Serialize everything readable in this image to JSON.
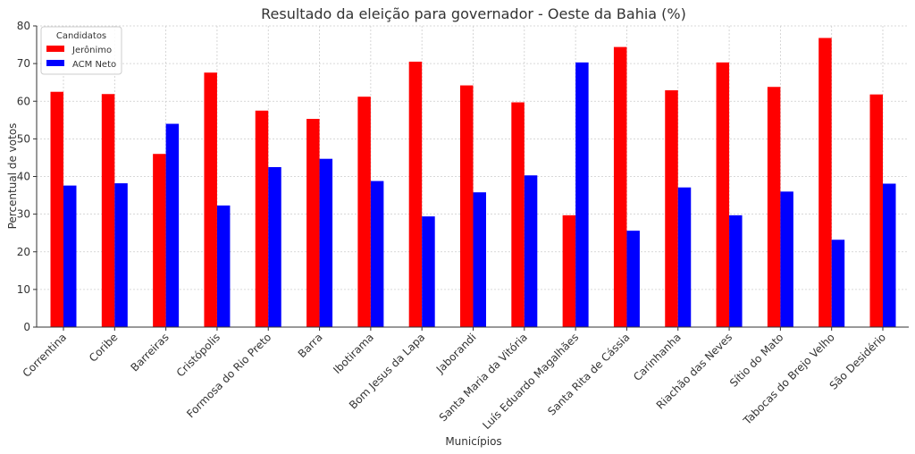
{
  "chart_data": {
    "type": "bar",
    "title": "Resultado da eleição para governador - Oeste da Bahia (%)",
    "xlabel": "Municípios",
    "ylabel": "Percentual de votos",
    "ylim": [
      0,
      80
    ],
    "yticks": [
      0,
      10,
      20,
      30,
      40,
      50,
      60,
      70,
      80
    ],
    "grid": true,
    "legend": {
      "title": "Candidatos",
      "placement": "top-left"
    },
    "categories": [
      "Correntina",
      "Coribe",
      "Barreiras",
      "Cristópolis",
      "Formosa do Rio Preto",
      "Barra",
      "Ibotirama",
      "Bom Jesus da Lapa",
      "Jaborandi",
      "Santa Maria da Vitória",
      "Luís Eduardo Magalhães",
      "Santa Rita de Cássia",
      "Carinhanha",
      "Riachão das Neves",
      "Sítio do Mato",
      "Tabocas do Brejo Velho",
      "São Desidério"
    ],
    "series": [
      {
        "name": "Jerônimo",
        "color": "#ff0000",
        "values": [
          62.5,
          61.9,
          46.0,
          67.6,
          57.5,
          55.3,
          61.2,
          70.5,
          64.2,
          59.7,
          29.7,
          74.4,
          62.9,
          70.3,
          63.8,
          76.8,
          61.8
        ]
      },
      {
        "name": "ACM Neto",
        "color": "#0000ff",
        "values": [
          37.6,
          38.2,
          54.0,
          32.3,
          42.5,
          44.7,
          38.8,
          29.4,
          35.8,
          40.3,
          70.3,
          25.6,
          37.1,
          29.7,
          36.0,
          23.2,
          38.1
        ]
      }
    ]
  }
}
